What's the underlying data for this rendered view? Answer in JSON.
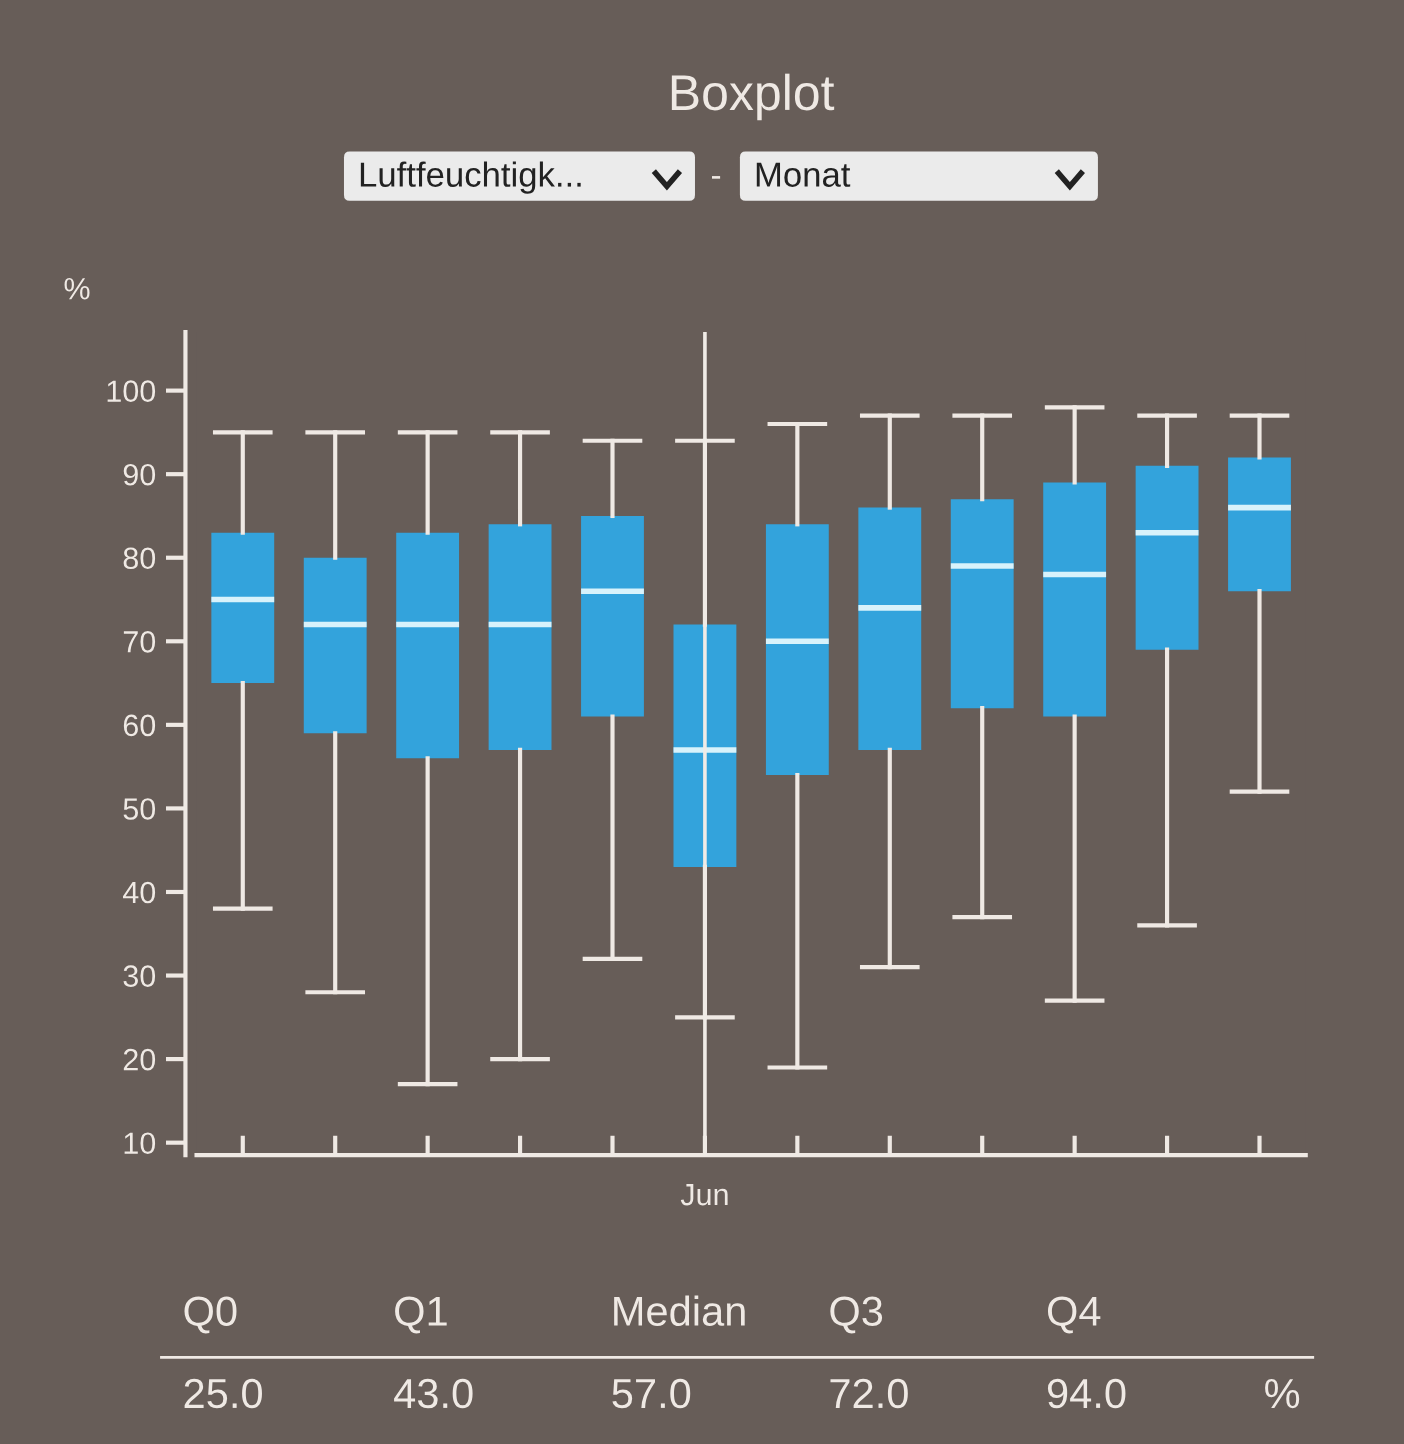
{
  "chart_data": {
    "type": "box",
    "title": "Boxplot",
    "ylabel": "%",
    "categories": [
      null,
      null,
      null,
      null,
      null,
      "Jun",
      null,
      null,
      null,
      null,
      null,
      null
    ],
    "color": "#33a3dc",
    "boxes": [
      {
        "low": 38,
        "q1": 65,
        "median": 75,
        "q3": 83,
        "high": 95
      },
      {
        "low": 28,
        "q1": 59,
        "median": 72,
        "q3": 80,
        "high": 95
      },
      {
        "low": 17,
        "q1": 56,
        "median": 72,
        "q3": 83,
        "high": 95
      },
      {
        "low": 20,
        "q1": 57,
        "median": 72,
        "q3": 84,
        "high": 95
      },
      {
        "low": 32,
        "q1": 61,
        "median": 76,
        "q3": 85,
        "high": 94
      },
      {
        "low": 25,
        "q1": 43,
        "median": 57,
        "q3": 72,
        "high": 94
      },
      {
        "low": 19,
        "q1": 54,
        "median": 70,
        "q3": 84,
        "high": 96
      },
      {
        "low": 31,
        "q1": 57,
        "median": 74,
        "q3": 86,
        "high": 97
      },
      {
        "low": 37,
        "q1": 62,
        "median": 79,
        "q3": 87,
        "high": 97
      },
      {
        "low": 27,
        "q1": 61,
        "median": 78,
        "q3": 89,
        "high": 98
      },
      {
        "low": 36,
        "q1": 69,
        "median": 83,
        "q3": 91,
        "high": 97
      },
      {
        "low": 52,
        "q1": 76,
        "median": 86,
        "q3": 92,
        "high": 97
      }
    ],
    "ylim": [
      8.5,
      107
    ],
    "yticks": [
      10,
      20,
      30,
      40,
      50,
      60,
      70,
      80,
      90,
      100
    ],
    "ref_lines": [
      {
        "axis": "x",
        "value": "Jun",
        "color": "#f0ebe6"
      }
    ],
    "grid": false,
    "annotations": [
      "Luftfeuchtigk...",
      "-",
      "Monat",
      "Q0",
      "Q1",
      "Median",
      "Q3",
      "Q4",
      "25.0",
      "43.0",
      "57.0",
      "72.0",
      "94.0",
      "%"
    ]
  }
}
